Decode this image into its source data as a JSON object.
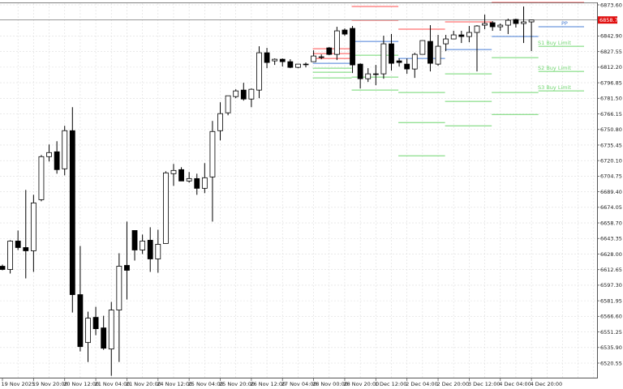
{
  "chart_data": {
    "type": "candlestick",
    "timeframe_note": "",
    "price_axis": {
      "ticks": [
        "6873.60",
        "6842.90",
        "6827.55",
        "6812.20",
        "6796.85",
        "6781.50",
        "6766.15",
        "6750.80",
        "6735.45",
        "6720.10",
        "6704.75",
        "6689.40",
        "6674.05",
        "6658.70",
        "6643.35",
        "6628.00",
        "6612.65",
        "6597.30",
        "6581.95",
        "6566.60",
        "6551.25",
        "6535.90",
        "6520.55"
      ],
      "range": [
        6520.55,
        6873.6
      ]
    },
    "time_axis": {
      "labels": [
        "19 Nov 2025",
        "19 Nov 20:00",
        "20 Nov 12:00",
        "21 Nov 04:00",
        "21 Nov 20:00",
        "24 Nov 12:00",
        "25 Nov 04:00",
        "25 Nov 20:00",
        "26 Nov 12:00",
        "27 Nov 04:00",
        "28 Nov 00:00",
        "28 Nov 20:00",
        "1 Dec 12:00",
        "2 Dec 04:00",
        "2 Dec 20:00",
        "3 Dec 12:00",
        "4 Dec 04:00",
        "4 Dec 20:00"
      ],
      "candles_per_label": 4
    },
    "current_price": "6858.70",
    "grid": true,
    "colors": {
      "bull_body": "#ffffff",
      "bear_body": "#000000",
      "wick": "#000000",
      "resistance": "#ff4d4d",
      "pivot": "#4a7fd6",
      "support": "#6fd66f",
      "current_price_label_bg": "#e01010",
      "grid": "#dddddd"
    },
    "ohlc": [
      [
        6616.0,
        6617.6,
        6612.0,
        6612.8
      ],
      [
        6612.8,
        6641.6,
        6608.8,
        6640.8
      ],
      [
        6640.8,
        6651.2,
        6632.0,
        6634.4
      ],
      [
        6634.4,
        6691.2,
        6604.0,
        6631.2
      ],
      [
        6631.2,
        6686.4,
        6610.4,
        6678.4
      ],
      [
        6681.6,
        6725.6,
        6680.0,
        6724.0
      ],
      [
        6724.0,
        6736.0,
        6719.2,
        6728.0
      ],
      [
        6728.8,
        6739.2,
        6707.2,
        6711.2
      ],
      [
        6712.0,
        6754.4,
        6705.6,
        6749.6
      ],
      [
        6749.6,
        6772.8,
        6570.4,
        6588.0
      ],
      [
        6588.0,
        6636.0,
        6532.0,
        6536.8
      ],
      [
        6540.8,
        6571.2,
        6521.6,
        6564.8
      ],
      [
        6565.6,
        6576.0,
        6548.0,
        6554.4
      ],
      [
        6555.2,
        6567.2,
        6533.6,
        6535.2
      ],
      [
        6534.4,
        6580.8,
        6508.0,
        6572.8
      ],
      [
        6572.8,
        6628.8,
        6521.6,
        6616.0
      ],
      [
        6616.8,
        6660.0,
        6583.2,
        6612.0
      ],
      [
        6651.2,
        6651.2,
        6621.6,
        6632.0
      ],
      [
        6632.0,
        6647.2,
        6628.0,
        6640.8
      ],
      [
        6641.6,
        6654.4,
        6610.4,
        6623.2
      ],
      [
        6623.2,
        6652.0,
        6609.6,
        6637.6
      ],
      [
        6638.4,
        6709.6,
        6638.4,
        6708.0
      ],
      [
        6707.2,
        6716.8,
        6695.2,
        6710.4
      ],
      [
        6711.2,
        6713.6,
        6700.0,
        6700.0
      ],
      [
        6700.0,
        6708.8,
        6698.4,
        6702.4
      ],
      [
        6702.4,
        6707.2,
        6686.4,
        6692.8
      ],
      [
        6692.8,
        6717.6,
        6688.0,
        6703.2
      ],
      [
        6704.0,
        6759.2,
        6660.0,
        6748.8
      ],
      [
        6749.6,
        6777.6,
        6740.0,
        6766.4
      ],
      [
        6767.2,
        6784.0,
        6764.8,
        6784.0
      ],
      [
        6783.2,
        6790.4,
        6781.6,
        6788.8
      ],
      [
        6789.6,
        6796.8,
        6779.2,
        6780.8
      ],
      [
        6780.8,
        6791.2,
        6772.8,
        6790.4
      ],
      [
        6789.6,
        6832.8,
        6781.6,
        6826.4
      ],
      [
        6826.4,
        6831.2,
        6811.2,
        6816.8
      ],
      [
        6818.4,
        6820.8,
        6814.4,
        6820.0
      ],
      [
        6820.0,
        6820.8,
        6812.8,
        6817.6
      ],
      [
        6817.6,
        6820.0,
        6811.2,
        6812.0
      ],
      [
        6812.0,
        6815.2,
        6811.2,
        6815.2
      ],
      [
        6815.2,
        6816.8,
        6812.0,
        6815.2
      ],
      [
        6817.6,
        6828.8,
        6817.6,
        6823.2
      ],
      [
        6822.4,
        6824.8,
        6820.0,
        6822.4
      ],
      [
        6831.2,
        6832.0,
        6824.0,
        6824.8
      ],
      [
        6824.8,
        6852.0,
        6819.2,
        6848.0
      ],
      [
        6848.8,
        6850.4,
        6843.2,
        6844.8
      ],
      [
        6850.4,
        6852.8,
        6806.4,
        6814.4
      ],
      [
        6815.2,
        6816.0,
        6791.2,
        6800.8
      ],
      [
        6800.8,
        6811.2,
        6797.6,
        6805.6
      ],
      [
        6805.6,
        6814.4,
        6794.4,
        6805.6
      ],
      [
        6805.6,
        6843.2,
        6800.8,
        6835.2
      ],
      [
        6835.2,
        6844.8,
        6808.8,
        6816.0
      ],
      [
        6818.4,
        6820.8,
        6812.8,
        6816.8
      ],
      [
        6815.2,
        6820.8,
        6805.6,
        6810.4
      ],
      [
        6810.4,
        6826.4,
        6801.6,
        6824.8
      ],
      [
        6824.8,
        6838.4,
        6824.8,
        6838.4
      ],
      [
        6837.6,
        6853.6,
        6808.0,
        6816.0
      ],
      [
        6815.2,
        6844.0,
        6813.6,
        6832.8
      ],
      [
        6835.2,
        6844.0,
        6828.0,
        6840.0
      ],
      [
        6840.0,
        6848.0,
        6840.0,
        6844.0
      ],
      [
        6844.0,
        6848.0,
        6836.0,
        6842.4
      ],
      [
        6842.4,
        6852.8,
        6836.8,
        6846.4
      ],
      [
        6846.4,
        6853.6,
        6808.0,
        6852.8
      ],
      [
        6853.6,
        6864.0,
        6849.6,
        6855.2
      ],
      [
        6856.0,
        6857.6,
        6848.0,
        6852.0
      ],
      [
        6852.0,
        6855.2,
        6848.0,
        6853.6
      ],
      [
        6853.6,
        6860.0,
        6844.8,
        6858.4
      ],
      [
        6859.2,
        6860.0,
        6851.2,
        6855.2
      ],
      [
        6855.2,
        6872.0,
        6836.0,
        6856.8
      ],
      [
        6856.8,
        6858.4,
        6828.0,
        6858.7
      ]
    ],
    "pivot_segments": [
      {
        "from": 40,
        "to": 45,
        "resistance": [
          6830.4,
          6825.6,
          6820.8
        ],
        "pivot": 6816.0,
        "support": [
          6811.2,
          6807.2,
          6801.6
        ]
      },
      {
        "from": 45,
        "to": 51,
        "resistance": [
          6872.0,
          6858.4
        ],
        "pivot": 6837.6,
        "support": [
          6824.0,
          6802.4,
          6789.6
        ]
      },
      {
        "from": 51,
        "to": 57,
        "resistance": [
          6849.6
        ],
        "pivot": 6820.8,
        "support": [
          6787.2,
          6757.6,
          6724.8
        ]
      },
      {
        "from": 57,
        "to": 63,
        "resistance": [
          6856.8
        ],
        "pivot": 6829.6,
        "support": [
          6805.6,
          6778.4,
          6754.4
        ]
      },
      {
        "from": 63,
        "to": 69,
        "resistance": [
          6876.0
        ],
        "pivot": 6842.4,
        "support": [
          6821.6,
          6787.2,
          6765.6
        ]
      },
      {
        "from": 69,
        "to": 75,
        "resistance": [
          6876.0
        ],
        "pivot": 6852.0,
        "support": [
          6832.8,
          6808.0,
          6788.8
        ]
      }
    ],
    "level_labels": {
      "pivot": "PP",
      "support": [
        "S1 Buy Limit",
        "S2 Buy Limit",
        "S3 Buy Limit"
      ]
    }
  }
}
